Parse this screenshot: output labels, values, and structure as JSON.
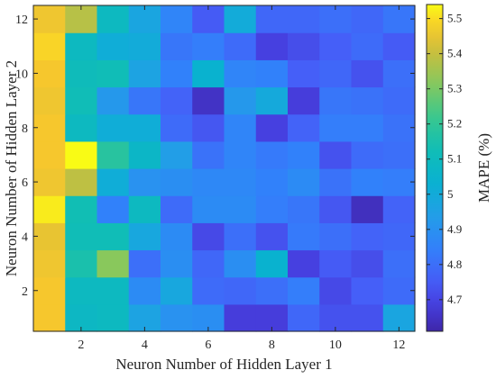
{
  "chart_data": {
    "type": "heatmap",
    "title": "",
    "xlabel": "Neuron Number of Hidden Layer 1",
    "ylabel": "Neuron Number of Hidden Layer 2",
    "x": [
      1,
      2,
      3,
      4,
      5,
      6,
      7,
      8,
      9,
      10,
      11,
      12
    ],
    "y": [
      1,
      2,
      3,
      4,
      5,
      6,
      7,
      8,
      9,
      10,
      11,
      12
    ],
    "xlim": [
      0.5,
      12.5
    ],
    "ylim": [
      0.5,
      12.5
    ],
    "xticks": [
      2,
      4,
      6,
      8,
      10,
      12
    ],
    "yticks": [
      2,
      4,
      6,
      8,
      10,
      12
    ],
    "colorbar": {
      "label": "MAPE (%)",
      "ticks": [
        4.7,
        4.8,
        4.9,
        5.0,
        5.1,
        5.2,
        5.3,
        5.4,
        5.5
      ],
      "tick_labels": [
        "4.7",
        "4.8",
        "4.9",
        "5",
        "5.1",
        "5.2",
        "5.3",
        "5.4",
        "5.5"
      ],
      "range": [
        4.61,
        5.54
      ],
      "colormap": "parula"
    },
    "values": [
      [
        5.47,
        5.08,
        5.09,
        4.96,
        4.9,
        4.89,
        4.68,
        4.68,
        4.78,
        4.73,
        4.73,
        4.97
      ],
      [
        5.47,
        5.09,
        5.09,
        4.88,
        4.98,
        4.79,
        4.78,
        4.8,
        4.84,
        4.71,
        4.76,
        4.79
      ],
      [
        5.46,
        5.15,
        5.32,
        4.8,
        4.89,
        4.78,
        4.89,
        5.04,
        4.69,
        4.75,
        4.72,
        4.8
      ],
      [
        5.45,
        5.12,
        5.12,
        4.98,
        4.88,
        4.71,
        4.8,
        4.73,
        4.83,
        4.8,
        4.77,
        4.78
      ],
      [
        5.52,
        5.13,
        4.85,
        5.09,
        4.79,
        4.88,
        4.88,
        4.84,
        4.82,
        4.74,
        4.64,
        4.77
      ],
      [
        5.46,
        5.39,
        5.01,
        4.9,
        4.89,
        4.87,
        4.87,
        4.85,
        4.88,
        4.81,
        4.85,
        4.84
      ],
      [
        5.47,
        5.54,
        5.18,
        5.07,
        4.94,
        4.81,
        4.86,
        4.83,
        4.85,
        4.73,
        4.79,
        4.8
      ],
      [
        5.47,
        5.09,
        5.01,
        5.01,
        4.79,
        4.74,
        4.86,
        4.69,
        4.77,
        4.84,
        4.84,
        4.81
      ],
      [
        5.46,
        5.12,
        4.92,
        4.82,
        4.77,
        4.65,
        4.92,
        4.99,
        4.68,
        4.82,
        4.81,
        4.79
      ],
      [
        5.47,
        5.11,
        5.12,
        4.96,
        4.85,
        5.04,
        4.86,
        4.85,
        4.76,
        4.78,
        4.73,
        4.8
      ],
      [
        5.49,
        5.09,
        5.01,
        5.0,
        4.82,
        4.84,
        4.79,
        4.69,
        4.72,
        4.76,
        4.79,
        4.75
      ],
      [
        5.46,
        5.38,
        5.09,
        4.97,
        4.86,
        4.75,
        5.0,
        4.78,
        4.78,
        4.8,
        4.78,
        4.82
      ]
    ]
  }
}
